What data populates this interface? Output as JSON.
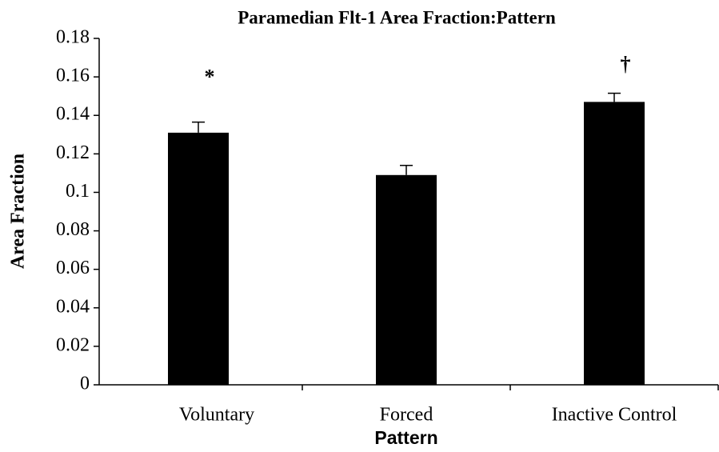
{
  "chart_data": {
    "type": "bar",
    "title": "Paramedian Flt-1 Area Fraction:Pattern",
    "x_label": "Pattern",
    "y_label": "Area Fraction",
    "categories": [
      "Voluntary",
      "Forced",
      "Inactive Control"
    ],
    "values": [
      0.131,
      0.109,
      0.147
    ],
    "errors": [
      0.0055,
      0.005,
      0.0045
    ],
    "annotations": [
      "*",
      null,
      "†"
    ],
    "color": "#000000",
    "ylim": [
      0,
      0.18
    ],
    "yticks": [
      0,
      0.02,
      0.04,
      0.06,
      0.08,
      0.1,
      0.12,
      0.14,
      0.16,
      0.18
    ],
    "grid": false
  }
}
